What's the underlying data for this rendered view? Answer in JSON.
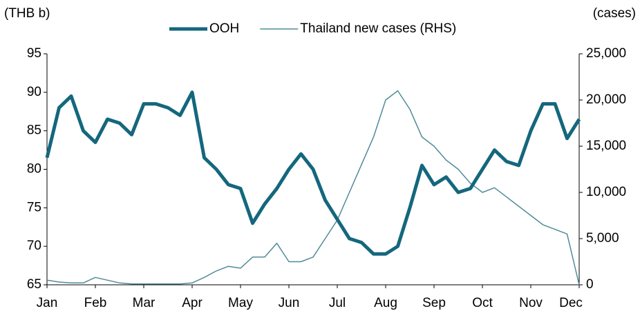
{
  "chart_data": {
    "type": "line",
    "y_label": "(THB b)",
    "y2_label": "(cases)",
    "categories": [
      "Jan",
      null,
      null,
      null,
      "Feb",
      null,
      null,
      null,
      "Mar",
      null,
      null,
      null,
      "Apr",
      null,
      null,
      null,
      "May",
      null,
      null,
      null,
      "Jun",
      null,
      null,
      null,
      "Jul",
      null,
      null,
      null,
      "Aug",
      null,
      null,
      null,
      "Sep",
      null,
      null,
      null,
      "Oct",
      null,
      null,
      null,
      "Nov",
      null,
      null,
      null,
      "Dec"
    ],
    "series": [
      {
        "name": "OOH",
        "color": "#14677d",
        "width": 5,
        "values": [
          81.5,
          88,
          89.5,
          85,
          83.5,
          86.5,
          86,
          84.5,
          88.5,
          88.5,
          88,
          87,
          90,
          81.5,
          80,
          78,
          77.5,
          73,
          75.5,
          77.5,
          80,
          82,
          80,
          76,
          73.5,
          71,
          70.5,
          69,
          69,
          70,
          75,
          80.5,
          78,
          79,
          77,
          77.5,
          80,
          82.5,
          81,
          80.5,
          85,
          88.5,
          88.5,
          84,
          86.5
        ]
      },
      {
        "name": "Thailand new cases (RHS)",
        "color": "#4f8b98",
        "width": 1.5,
        "axis": "y2",
        "values": [
          500,
          300,
          200,
          200,
          800,
          500,
          200,
          100,
          100,
          100,
          100,
          100,
          200,
          800,
          1500,
          2000,
          1800,
          3000,
          3000,
          4500,
          2500,
          2500,
          3000,
          5000,
          7000,
          10000,
          13000,
          16000,
          20000,
          21000,
          19000,
          16000,
          15000,
          13500,
          12500,
          11000,
          10000,
          10500,
          9500,
          8500,
          7500,
          6500,
          6000,
          5500,
          0
        ]
      }
    ],
    "ylim": [
      65,
      95
    ],
    "yticks": [
      65,
      70,
      75,
      80,
      85,
      90,
      95
    ],
    "y2lim": [
      0,
      25000
    ],
    "y2ticks": [
      0,
      {
        "value": 5000,
        "label": "5,000"
      },
      {
        "value": 10000,
        "label": "10,000"
      },
      {
        "value": 15000,
        "label": "15,000"
      },
      {
        "value": 20000,
        "label": "20,000"
      },
      {
        "value": 25000,
        "label": "25,000"
      }
    ]
  }
}
